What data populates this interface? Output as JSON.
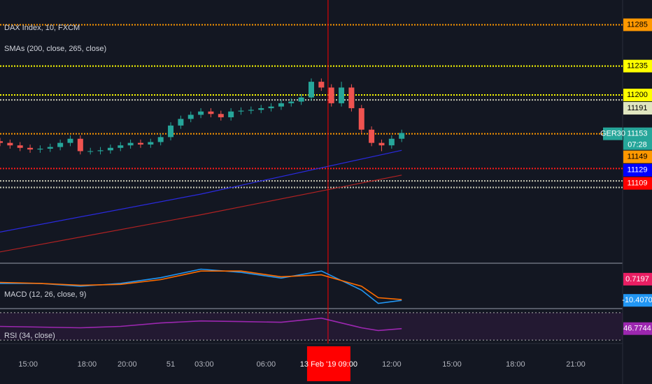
{
  "chart_data": [
    {
      "type": "candlestick",
      "title": "DAX Index, 10, FXCM",
      "subtitle": "SMAs (200, close, 265, close)",
      "symbol": "GER30",
      "countdown": "07:28",
      "ylim": [
        10998,
        11315
      ],
      "xlim": [
        0,
        186
      ],
      "xticks": [
        {
          "value": 8.4,
          "label": "15:00"
        },
        {
          "value": 26,
          "label": "18:00"
        },
        {
          "value": 38,
          "label": "20:00"
        },
        51,
        {
          "value": 61,
          "label": "03:00"
        },
        {
          "value": 79.5,
          "label": "06:00"
        },
        {
          "value": 117,
          "label": "12:00"
        },
        {
          "value": 135,
          "label": "15:00"
        },
        {
          "value": 154,
          "label": "18:00"
        },
        {
          "value": 172,
          "label": "21:00"
        }
      ],
      "crosshair": {
        "x": 98,
        "label": "13 Feb '19  09:00",
        "color": "#ff0000"
      },
      "x": [
        0,
        3,
        6,
        9,
        12,
        15,
        18,
        21,
        24,
        27,
        30,
        33,
        36,
        39,
        42,
        45,
        48,
        51,
        54,
        57,
        60,
        63,
        66,
        69,
        72,
        75,
        78,
        81,
        84,
        87,
        90,
        93,
        96,
        99,
        102,
        105,
        108,
        111,
        114,
        117,
        120
      ],
      "open": [
        11144,
        11142,
        11139,
        11136,
        11134,
        11135,
        11137,
        11142,
        11147,
        11132,
        11132,
        11133,
        11136,
        11139,
        11142,
        11140,
        11143,
        11149,
        11163,
        11171,
        11176,
        11180,
        11177,
        11173,
        11180,
        11181,
        11182,
        11184,
        11186,
        11190,
        11192,
        11197,
        11216,
        11209,
        11190,
        11209,
        11184,
        11158,
        11142,
        11139,
        11147
      ],
      "high": [
        11148,
        11146,
        11143,
        11140,
        11139,
        11141,
        11146,
        11151,
        11151,
        11136,
        11137,
        11140,
        11143,
        11146,
        11146,
        11147,
        11153,
        11167,
        11175,
        11180,
        11184,
        11184,
        11181,
        11184,
        11185,
        11186,
        11188,
        11190,
        11194,
        11196,
        11201,
        11220,
        11220,
        11213,
        11216,
        11213,
        11188,
        11162,
        11146,
        11151,
        11158
      ],
      "low": [
        11138,
        11135,
        11132,
        11130,
        11130,
        11131,
        11133,
        11138,
        11128,
        11128,
        11128,
        11129,
        11132,
        11135,
        11136,
        11136,
        11139,
        11145,
        11159,
        11167,
        11172,
        11173,
        11169,
        11169,
        11176,
        11177,
        11178,
        11180,
        11182,
        11186,
        11188,
        11193,
        11205,
        11186,
        11186,
        11180,
        11154,
        11138,
        11132,
        11135,
        11143
      ],
      "close": [
        11142,
        11139,
        11136,
        11134,
        11135,
        11137,
        11142,
        11147,
        11132,
        11132,
        11133,
        11136,
        11139,
        11142,
        11140,
        11143,
        11149,
        11163,
        11171,
        11176,
        11180,
        11177,
        11173,
        11180,
        11181,
        11182,
        11184,
        11186,
        11190,
        11192,
        11197,
        11216,
        11209,
        11190,
        11209,
        11184,
        11158,
        11142,
        11139,
        11147,
        11154
      ],
      "up_color": "#26a69a",
      "down_color": "#ef5350",
      "series": [
        {
          "x": [
            0,
            60,
            120
          ],
          "values": [
            11034,
            11080,
            11133
          ],
          "color": "#2a2ae0"
        },
        {
          "x": [
            0,
            60,
            120
          ],
          "values": [
            11010,
            11055,
            11103
          ],
          "color": "#b22222"
        }
      ],
      "levels": [
        {
          "value": 11285,
          "color": "#ff9800"
        },
        {
          "value": 11235,
          "color": "#ffff00"
        },
        {
          "value": 11200,
          "color": "#ffff00"
        },
        {
          "value": 11194,
          "color": "#c8c8b4"
        },
        {
          "value": 11153,
          "color": "#ff9800"
        },
        {
          "value": 11111,
          "color": "#ff1a1a"
        },
        {
          "value": 11096,
          "color": "#c8c8b4"
        },
        {
          "value": 11088,
          "color": "#c8c8b4"
        }
      ],
      "badges": [
        {
          "value": 11285,
          "color": "#ff9800"
        },
        {
          "value": 11235,
          "color": "#ffff00"
        },
        {
          "value": 11200,
          "color": "#ffff00"
        },
        {
          "value": 11191,
          "color": "#e0e6c0"
        },
        {
          "value": 11153,
          "color": "#26a69a"
        },
        {
          "value": 11149,
          "color": "#ff9800"
        },
        {
          "value": 11129,
          "color": "#0000ff"
        },
        {
          "value": 11109,
          "color": "#ff0000"
        }
      ]
    },
    {
      "type": "line",
      "title": "MACD (12, 26, close, 9)",
      "ylim": [
        -14,
        8
      ],
      "xlim": [
        0,
        186
      ],
      "x": [
        0,
        12,
        24,
        36,
        48,
        60,
        72,
        84,
        96,
        108,
        113,
        120
      ],
      "series": [
        {
          "values": [
            -1.5,
            -1.5,
            -3,
            -1.5,
            1.5,
            6,
            4.3,
            1.3,
            5,
            -5,
            -12,
            -10.407
          ],
          "color": "#2196f3"
        },
        {
          "values": [
            -1,
            -1.5,
            -2.5,
            -2,
            0.5,
            5,
            5,
            2,
            3,
            -3,
            -9,
            -10
          ],
          "color": "#ff6d00"
        }
      ],
      "badges": [
        {
          "value": 0.7197,
          "label": "0.7197",
          "color": "#e91e63"
        },
        {
          "value": -10.407,
          "label": "-10.4070",
          "color": "#2196f3"
        }
      ]
    },
    {
      "type": "line",
      "title": "RSI (34, close)",
      "ylim": [
        25,
        75
      ],
      "xlim": [
        0,
        186
      ],
      "levels": [
        70,
        30
      ],
      "x": [
        0,
        12,
        24,
        36,
        48,
        60,
        72,
        84,
        96,
        108,
        113,
        120
      ],
      "series": [
        {
          "values": [
            50,
            49,
            48,
            50,
            55,
            58,
            57,
            56,
            62,
            48,
            44,
            46.7744
          ],
          "color": "#9c27b0"
        }
      ],
      "badges": [
        {
          "value": 46.7744,
          "color": "#9c27b0"
        }
      ]
    }
  ]
}
